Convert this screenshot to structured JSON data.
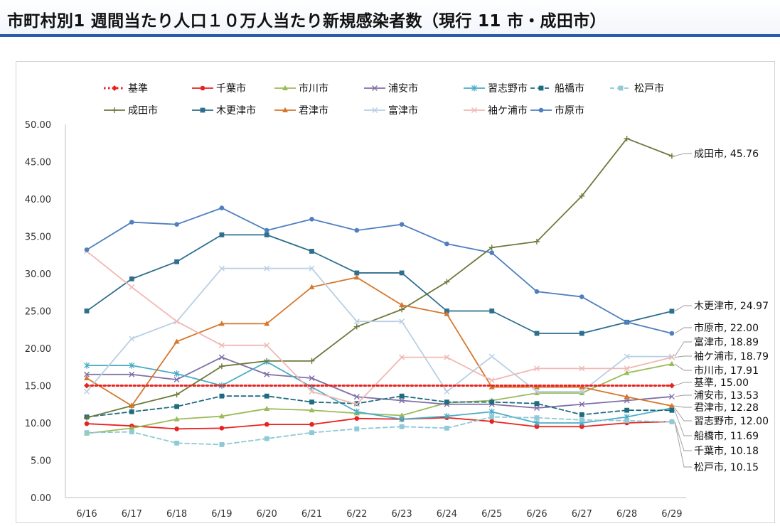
{
  "header": {
    "title": "市町村別1 週間当たり人口１０万人当たり新規感染者数（現行 11 市・成田市）"
  },
  "chart_data": {
    "type": "line",
    "title": "市町村別1 週間当たり人口１０万人当たり新規感染者数（現行 11 市・成田市）",
    "xlabel": "",
    "ylabel": "",
    "ylim": [
      0,
      50
    ],
    "yticks": [
      "0.00",
      "5.00",
      "10.00",
      "15.00",
      "20.00",
      "25.00",
      "30.00",
      "35.00",
      "40.00",
      "45.00",
      "50.00"
    ],
    "categories": [
      "6/16",
      "6/17",
      "6/18",
      "6/19",
      "6/20",
      "6/21",
      "6/22",
      "6/23",
      "6/24",
      "6/25",
      "6/26",
      "6/27",
      "6/28",
      "6/29"
    ],
    "legend_position": "top",
    "series": [
      {
        "name": "基準",
        "color": "#e8231f",
        "dash": "dot",
        "marker": "diamond",
        "values": [
          15,
          15,
          15,
          15,
          15,
          15,
          15,
          15,
          15,
          15,
          15,
          15,
          15,
          15
        ]
      },
      {
        "name": "千葉市",
        "color": "#e8231f",
        "dash": "solid",
        "marker": "circle",
        "values": [
          9.9,
          9.6,
          9.2,
          9.3,
          9.8,
          9.8,
          10.6,
          10.5,
          10.7,
          10.2,
          9.5,
          9.5,
          10.0,
          10.18
        ]
      },
      {
        "name": "市川市",
        "color": "#9bbb59",
        "dash": "solid",
        "marker": "triangle",
        "values": [
          8.6,
          9.3,
          10.5,
          10.9,
          11.9,
          11.7,
          11.3,
          11.0,
          12.7,
          13.0,
          14.0,
          14.0,
          16.7,
          17.91
        ]
      },
      {
        "name": "浦安市",
        "color": "#7f6fa8",
        "dash": "solid",
        "marker": "x",
        "values": [
          16.5,
          16.5,
          15.8,
          18.8,
          16.5,
          16.0,
          13.5,
          13.0,
          12.5,
          12.5,
          12.0,
          12.5,
          13.0,
          13.53
        ]
      },
      {
        "name": "習志野市",
        "color": "#4bacc6",
        "dash": "solid",
        "marker": "star",
        "values": [
          17.7,
          17.7,
          16.6,
          15.0,
          18.2,
          14.8,
          11.5,
          10.5,
          10.9,
          11.5,
          10.0,
          10.0,
          10.8,
          12.0
        ]
      },
      {
        "name": "船橋市",
        "color": "#1f6b80",
        "dash": "dash",
        "marker": "square",
        "values": [
          10.8,
          11.5,
          12.2,
          13.6,
          13.6,
          12.8,
          12.6,
          13.6,
          12.8,
          12.8,
          12.6,
          11.1,
          11.7,
          11.69
        ]
      },
      {
        "name": "松戸市",
        "color": "#8fc9d6",
        "dash": "dash",
        "marker": "square",
        "values": [
          8.7,
          8.8,
          7.3,
          7.1,
          7.9,
          8.7,
          9.2,
          9.5,
          9.3,
          10.8,
          10.7,
          10.4,
          10.3,
          10.15
        ]
      },
      {
        "name": "成田市",
        "color": "#6b7a3c",
        "dash": "solid",
        "marker": "plus",
        "values": [
          10.7,
          12.3,
          13.8,
          17.6,
          18.3,
          18.3,
          22.9,
          25.2,
          28.9,
          33.5,
          34.3,
          40.4,
          48.1,
          45.76
        ]
      },
      {
        "name": "木更津市",
        "color": "#2e6e8e",
        "dash": "solid",
        "marker": "square",
        "values": [
          25.0,
          29.3,
          31.6,
          35.2,
          35.2,
          33.0,
          30.1,
          30.1,
          25.0,
          25.0,
          22.0,
          22.0,
          23.5,
          24.97
        ]
      },
      {
        "name": "君津市",
        "color": "#d6772c",
        "dash": "solid",
        "marker": "triangle",
        "values": [
          16.0,
          12.3,
          20.9,
          23.3,
          23.3,
          28.2,
          29.5,
          25.8,
          24.6,
          14.8,
          14.8,
          14.8,
          13.5,
          12.28
        ]
      },
      {
        "name": "富津市",
        "color": "#b8cfe4",
        "dash": "solid",
        "marker": "x",
        "values": [
          14.2,
          21.3,
          23.6,
          30.7,
          30.7,
          30.7,
          23.6,
          23.6,
          14.2,
          18.9,
          14.2,
          14.2,
          18.9,
          18.89
        ]
      },
      {
        "name": "袖ケ浦市",
        "color": "#f0b8b4",
        "dash": "solid",
        "marker": "x",
        "values": [
          33.0,
          28.2,
          23.6,
          20.4,
          20.4,
          14.2,
          12.5,
          18.8,
          18.8,
          15.7,
          17.3,
          17.3,
          17.3,
          18.79
        ]
      },
      {
        "name": "市原市",
        "color": "#4f7fbf",
        "dash": "solid",
        "marker": "circle",
        "values": [
          33.2,
          36.9,
          36.6,
          38.8,
          35.8,
          37.3,
          35.8,
          36.6,
          34.0,
          32.8,
          27.6,
          26.9,
          23.5,
          22.0
        ]
      }
    ],
    "end_labels": [
      {
        "series": "成田市",
        "text": "成田市, 45.76"
      },
      {
        "series": "木更津市",
        "text": "木更津市, 24.97"
      },
      {
        "series": "市原市",
        "text": "市原市, 22.00"
      },
      {
        "series": "富津市",
        "text": "富津市, 18.89"
      },
      {
        "series": "袖ケ浦市",
        "text": "袖ケ浦市, 18.79"
      },
      {
        "series": "市川市",
        "text": "市川市, 17.91"
      },
      {
        "series": "基準",
        "text": "基準, 15.00"
      },
      {
        "series": "浦安市",
        "text": "浦安市, 13.53"
      },
      {
        "series": "君津市",
        "text": "君津市, 12.28"
      },
      {
        "series": "習志野市",
        "text": "習志野市, 12.00"
      },
      {
        "series": "船橋市",
        "text": "船橋市, 11.69"
      },
      {
        "series": "千葉市",
        "text": "千葉市, 10.18"
      },
      {
        "series": "松戸市",
        "text": "松戸市, 10.15"
      }
    ]
  }
}
